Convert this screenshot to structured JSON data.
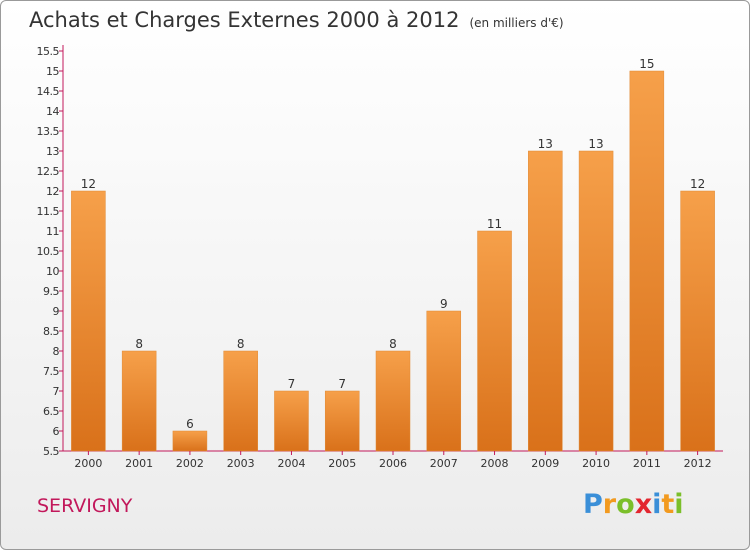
{
  "header": {
    "title": "Achats et Charges Externes 2000 à 2012",
    "subtitle": "(en milliers d'€)"
  },
  "footer": {
    "place": "SERVIGNY",
    "logo_letters": [
      {
        "ch": "P",
        "color": "#3a8fd8"
      },
      {
        "ch": "r",
        "color": "#f29a1f"
      },
      {
        "ch": "o",
        "color": "#7bbf2a"
      },
      {
        "ch": "x",
        "color": "#e3262f"
      },
      {
        "ch": "i",
        "color": "#3a8fd8"
      },
      {
        "ch": "t",
        "color": "#f29a1f"
      },
      {
        "ch": "i",
        "color": "#7bbf2a"
      }
    ]
  },
  "chart_data": {
    "type": "bar",
    "title": "Achats et Charges Externes 2000 à 2012",
    "subtitle": "(en milliers d'€)",
    "xlabel": "",
    "ylabel": "",
    "categories": [
      "2000",
      "2001",
      "2002",
      "2003",
      "2004",
      "2005",
      "2006",
      "2007",
      "2008",
      "2009",
      "2010",
      "2011",
      "2012"
    ],
    "values": [
      12,
      8,
      6,
      8,
      7,
      7,
      8,
      9,
      11,
      13,
      13,
      15,
      12
    ],
    "data_labels": [
      "12",
      "8",
      "6",
      "8",
      "7",
      "7",
      "8",
      "9",
      "11",
      "13",
      "13",
      "15",
      "12"
    ],
    "ylim": [
      5.5,
      15.5
    ],
    "yticks": [
      "5.5",
      "6",
      "6.5",
      "7",
      "7.5",
      "8",
      "8.5",
      "9",
      "9.5",
      "10",
      "10.5",
      "11",
      "11.5",
      "12",
      "12.5",
      "13",
      "13.5",
      "14",
      "14.5",
      "15",
      "15.5"
    ],
    "grid": false,
    "legend": "none",
    "colors": {
      "bar_light": "#f6a04a",
      "bar_dark": "#d9711a",
      "axis": "#c2185b",
      "text": "#333333"
    }
  }
}
